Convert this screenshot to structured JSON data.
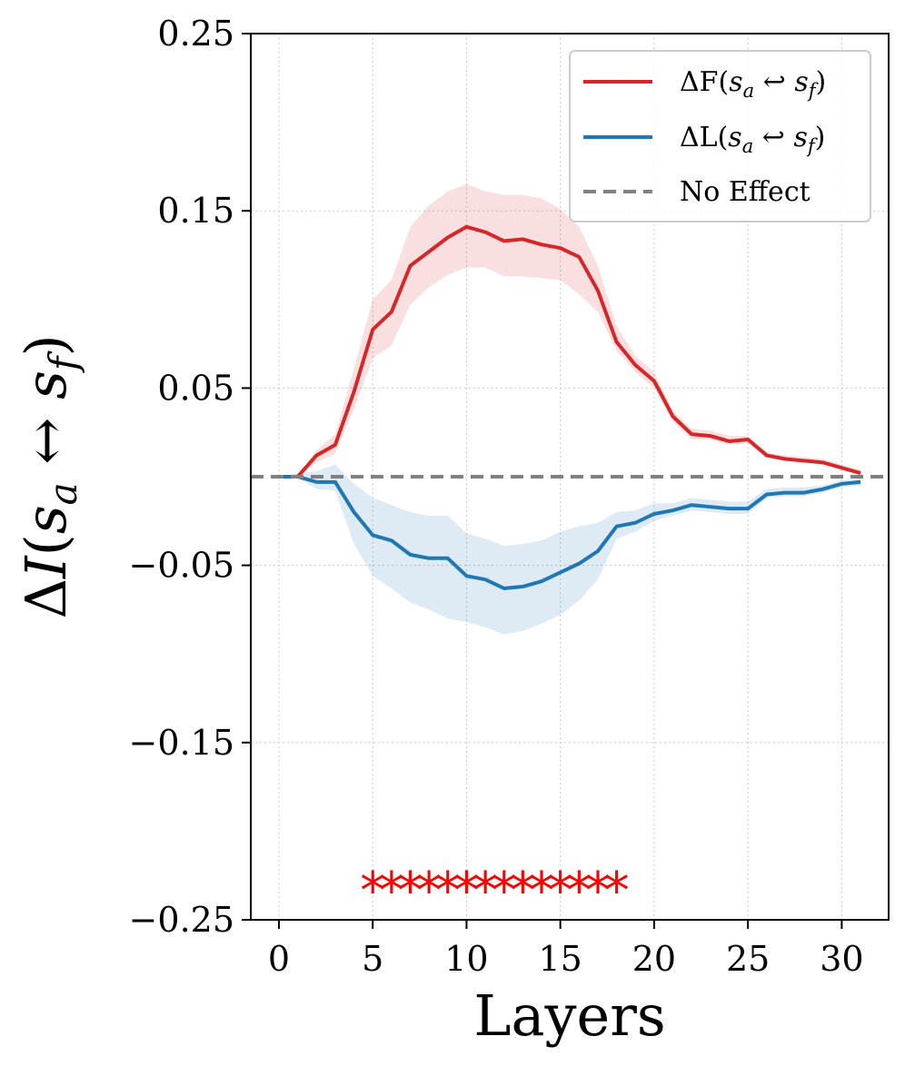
{
  "chart_data": {
    "type": "line",
    "xlabel": "Layers",
    "ylabel": "ΔI(s_a ↔ s_f)",
    "xlim": [
      -1.5,
      32.5
    ],
    "ylim": [
      -0.25,
      0.25
    ],
    "xticks": [
      0,
      5,
      10,
      15,
      20,
      25,
      30
    ],
    "xtick_labels": [
      "0",
      "5",
      "10",
      "15",
      "20",
      "25",
      "30"
    ],
    "yticks": [
      0.25,
      0.15,
      0.05,
      -0.05,
      -0.15,
      -0.25
    ],
    "ytick_labels": [
      "0.25",
      "0.15",
      "0.05",
      "−0.05",
      "−0.15",
      "−0.25"
    ],
    "grid": true,
    "legend_position": "top-right",
    "x": [
      0,
      1,
      2,
      3,
      4,
      5,
      6,
      7,
      8,
      9,
      10,
      11,
      12,
      13,
      14,
      15,
      16,
      17,
      18,
      19,
      20,
      21,
      22,
      23,
      24,
      25,
      26,
      27,
      28,
      29,
      30,
      31
    ],
    "series": [
      {
        "name": "ΔF(s_a ↔ s_f)",
        "legend_main": "ΔF(",
        "legend_sub": "a",
        "legend_sub2": "f",
        "color": "#d62728",
        "values": [
          0.0,
          0.0,
          0.012,
          0.018,
          0.048,
          0.083,
          0.093,
          0.119,
          0.127,
          0.135,
          0.141,
          0.138,
          0.133,
          0.134,
          0.131,
          0.129,
          0.124,
          0.105,
          0.076,
          0.063,
          0.054,
          0.034,
          0.024,
          0.023,
          0.02,
          0.021,
          0.012,
          0.01,
          0.009,
          0.008,
          0.005,
          0.002
        ],
        "lower": [
          0.0,
          0.0,
          0.008,
          0.013,
          0.038,
          0.067,
          0.074,
          0.097,
          0.107,
          0.114,
          0.118,
          0.118,
          0.113,
          0.113,
          0.112,
          0.111,
          0.103,
          0.093,
          0.071,
          0.059,
          0.05,
          0.031,
          0.021,
          0.021,
          0.018,
          0.019,
          0.011,
          0.009,
          0.008,
          0.007,
          0.004,
          0.001
        ],
        "upper": [
          0.0,
          0.0,
          0.015,
          0.024,
          0.061,
          0.1,
          0.111,
          0.141,
          0.153,
          0.161,
          0.165,
          0.161,
          0.159,
          0.159,
          0.157,
          0.151,
          0.141,
          0.119,
          0.085,
          0.068,
          0.059,
          0.037,
          0.027,
          0.026,
          0.023,
          0.023,
          0.014,
          0.012,
          0.011,
          0.01,
          0.007,
          0.004
        ]
      },
      {
        "name": "ΔL(s_a ↔ s_f)",
        "legend_main": "ΔL(",
        "legend_sub": "a",
        "legend_sub2": "f",
        "color": "#1f77b4",
        "values": [
          0.0,
          0.0,
          -0.003,
          -0.003,
          -0.02,
          -0.033,
          -0.036,
          -0.044,
          -0.046,
          -0.046,
          -0.056,
          -0.058,
          -0.063,
          -0.062,
          -0.059,
          -0.054,
          -0.049,
          -0.042,
          -0.028,
          -0.026,
          -0.021,
          -0.019,
          -0.016,
          -0.017,
          -0.018,
          -0.018,
          -0.01,
          -0.009,
          -0.009,
          -0.007,
          -0.004,
          -0.003
        ],
        "lower": [
          0.0,
          0.0,
          -0.007,
          -0.008,
          -0.038,
          -0.056,
          -0.063,
          -0.071,
          -0.075,
          -0.08,
          -0.082,
          -0.085,
          -0.089,
          -0.087,
          -0.083,
          -0.078,
          -0.07,
          -0.058,
          -0.035,
          -0.031,
          -0.025,
          -0.022,
          -0.019,
          -0.02,
          -0.021,
          -0.021,
          -0.012,
          -0.011,
          -0.011,
          -0.009,
          -0.006,
          -0.005
        ],
        "upper": [
          0.0,
          0.002,
          0.003,
          0.007,
          -0.004,
          -0.012,
          -0.016,
          -0.02,
          -0.022,
          -0.022,
          -0.032,
          -0.035,
          -0.039,
          -0.038,
          -0.036,
          -0.031,
          -0.028,
          -0.026,
          -0.02,
          -0.019,
          -0.015,
          -0.015,
          -0.012,
          -0.013,
          -0.014,
          -0.014,
          -0.007,
          -0.006,
          -0.006,
          -0.005,
          -0.002,
          -0.001
        ]
      },
      {
        "name": "No Effect",
        "color": "#808080",
        "dashed": true,
        "values_constant": 0
      }
    ],
    "significance_markers": {
      "symbol": "*",
      "color": "#ff0000",
      "y": -0.232,
      "x": [
        5,
        6,
        7,
        8,
        9,
        10,
        11,
        12,
        13,
        14,
        15,
        16,
        17,
        18
      ]
    }
  },
  "legend": {
    "items": [
      "ΔF(s_a ↔ s_f)",
      "ΔL(s_a ↔ s_f)",
      "No Effect"
    ]
  }
}
